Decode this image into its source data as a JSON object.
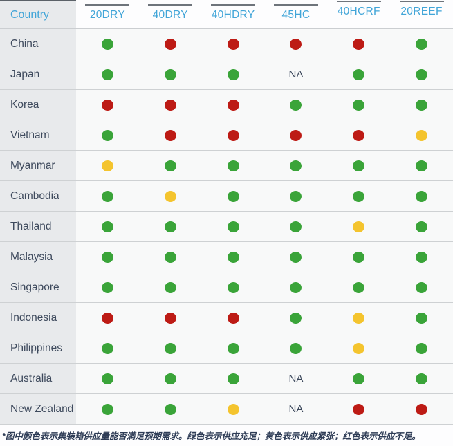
{
  "chart_data": {
    "type": "table",
    "corner_header": "Country",
    "columns": [
      "20DRY",
      "40DRY",
      "40HDRY",
      "45HC",
      "40HCRF",
      "20REEF"
    ],
    "rows": [
      {
        "country": "China",
        "cells": [
          "green",
          "red",
          "red",
          "red",
          "red",
          "green"
        ]
      },
      {
        "country": "Japan",
        "cells": [
          "green",
          "green",
          "green",
          "NA",
          "green",
          "green"
        ]
      },
      {
        "country": "Korea",
        "cells": [
          "red",
          "red",
          "red",
          "green",
          "green",
          "green"
        ]
      },
      {
        "country": "Vietnam",
        "cells": [
          "green",
          "red",
          "red",
          "red",
          "red",
          "yellow"
        ]
      },
      {
        "country": "Myanmar",
        "cells": [
          "yellow",
          "green",
          "green",
          "green",
          "green",
          "green"
        ]
      },
      {
        "country": "Cambodia",
        "cells": [
          "green",
          "yellow",
          "green",
          "green",
          "green",
          "green"
        ]
      },
      {
        "country": "Thailand",
        "cells": [
          "green",
          "green",
          "green",
          "green",
          "yellow",
          "green"
        ]
      },
      {
        "country": "Malaysia",
        "cells": [
          "green",
          "green",
          "green",
          "green",
          "green",
          "green"
        ]
      },
      {
        "country": "Singapore",
        "cells": [
          "green",
          "green",
          "green",
          "green",
          "green",
          "green"
        ]
      },
      {
        "country": "Indonesia",
        "cells": [
          "red",
          "red",
          "red",
          "green",
          "yellow",
          "green"
        ]
      },
      {
        "country": "Philippines",
        "cells": [
          "green",
          "green",
          "green",
          "green",
          "yellow",
          "green"
        ]
      },
      {
        "country": "Australia",
        "cells": [
          "green",
          "green",
          "green",
          "NA",
          "green",
          "green"
        ]
      },
      {
        "country": "New Zealand",
        "cells": [
          "green",
          "green",
          "yellow",
          "NA",
          "red",
          "red"
        ]
      }
    ],
    "na_label": "NA",
    "note": "*图中颜色表示集装箱供应量能否满足预期需求。绿色表示供应充足；黄色表示供应紧张；红色表示供应不足。"
  },
  "colors": {
    "green": "#3aa439",
    "yellow": "#f4c42e",
    "red": "#bd1b15",
    "header_blue": "#41a5d8",
    "country_text": "#3e4a5d"
  }
}
